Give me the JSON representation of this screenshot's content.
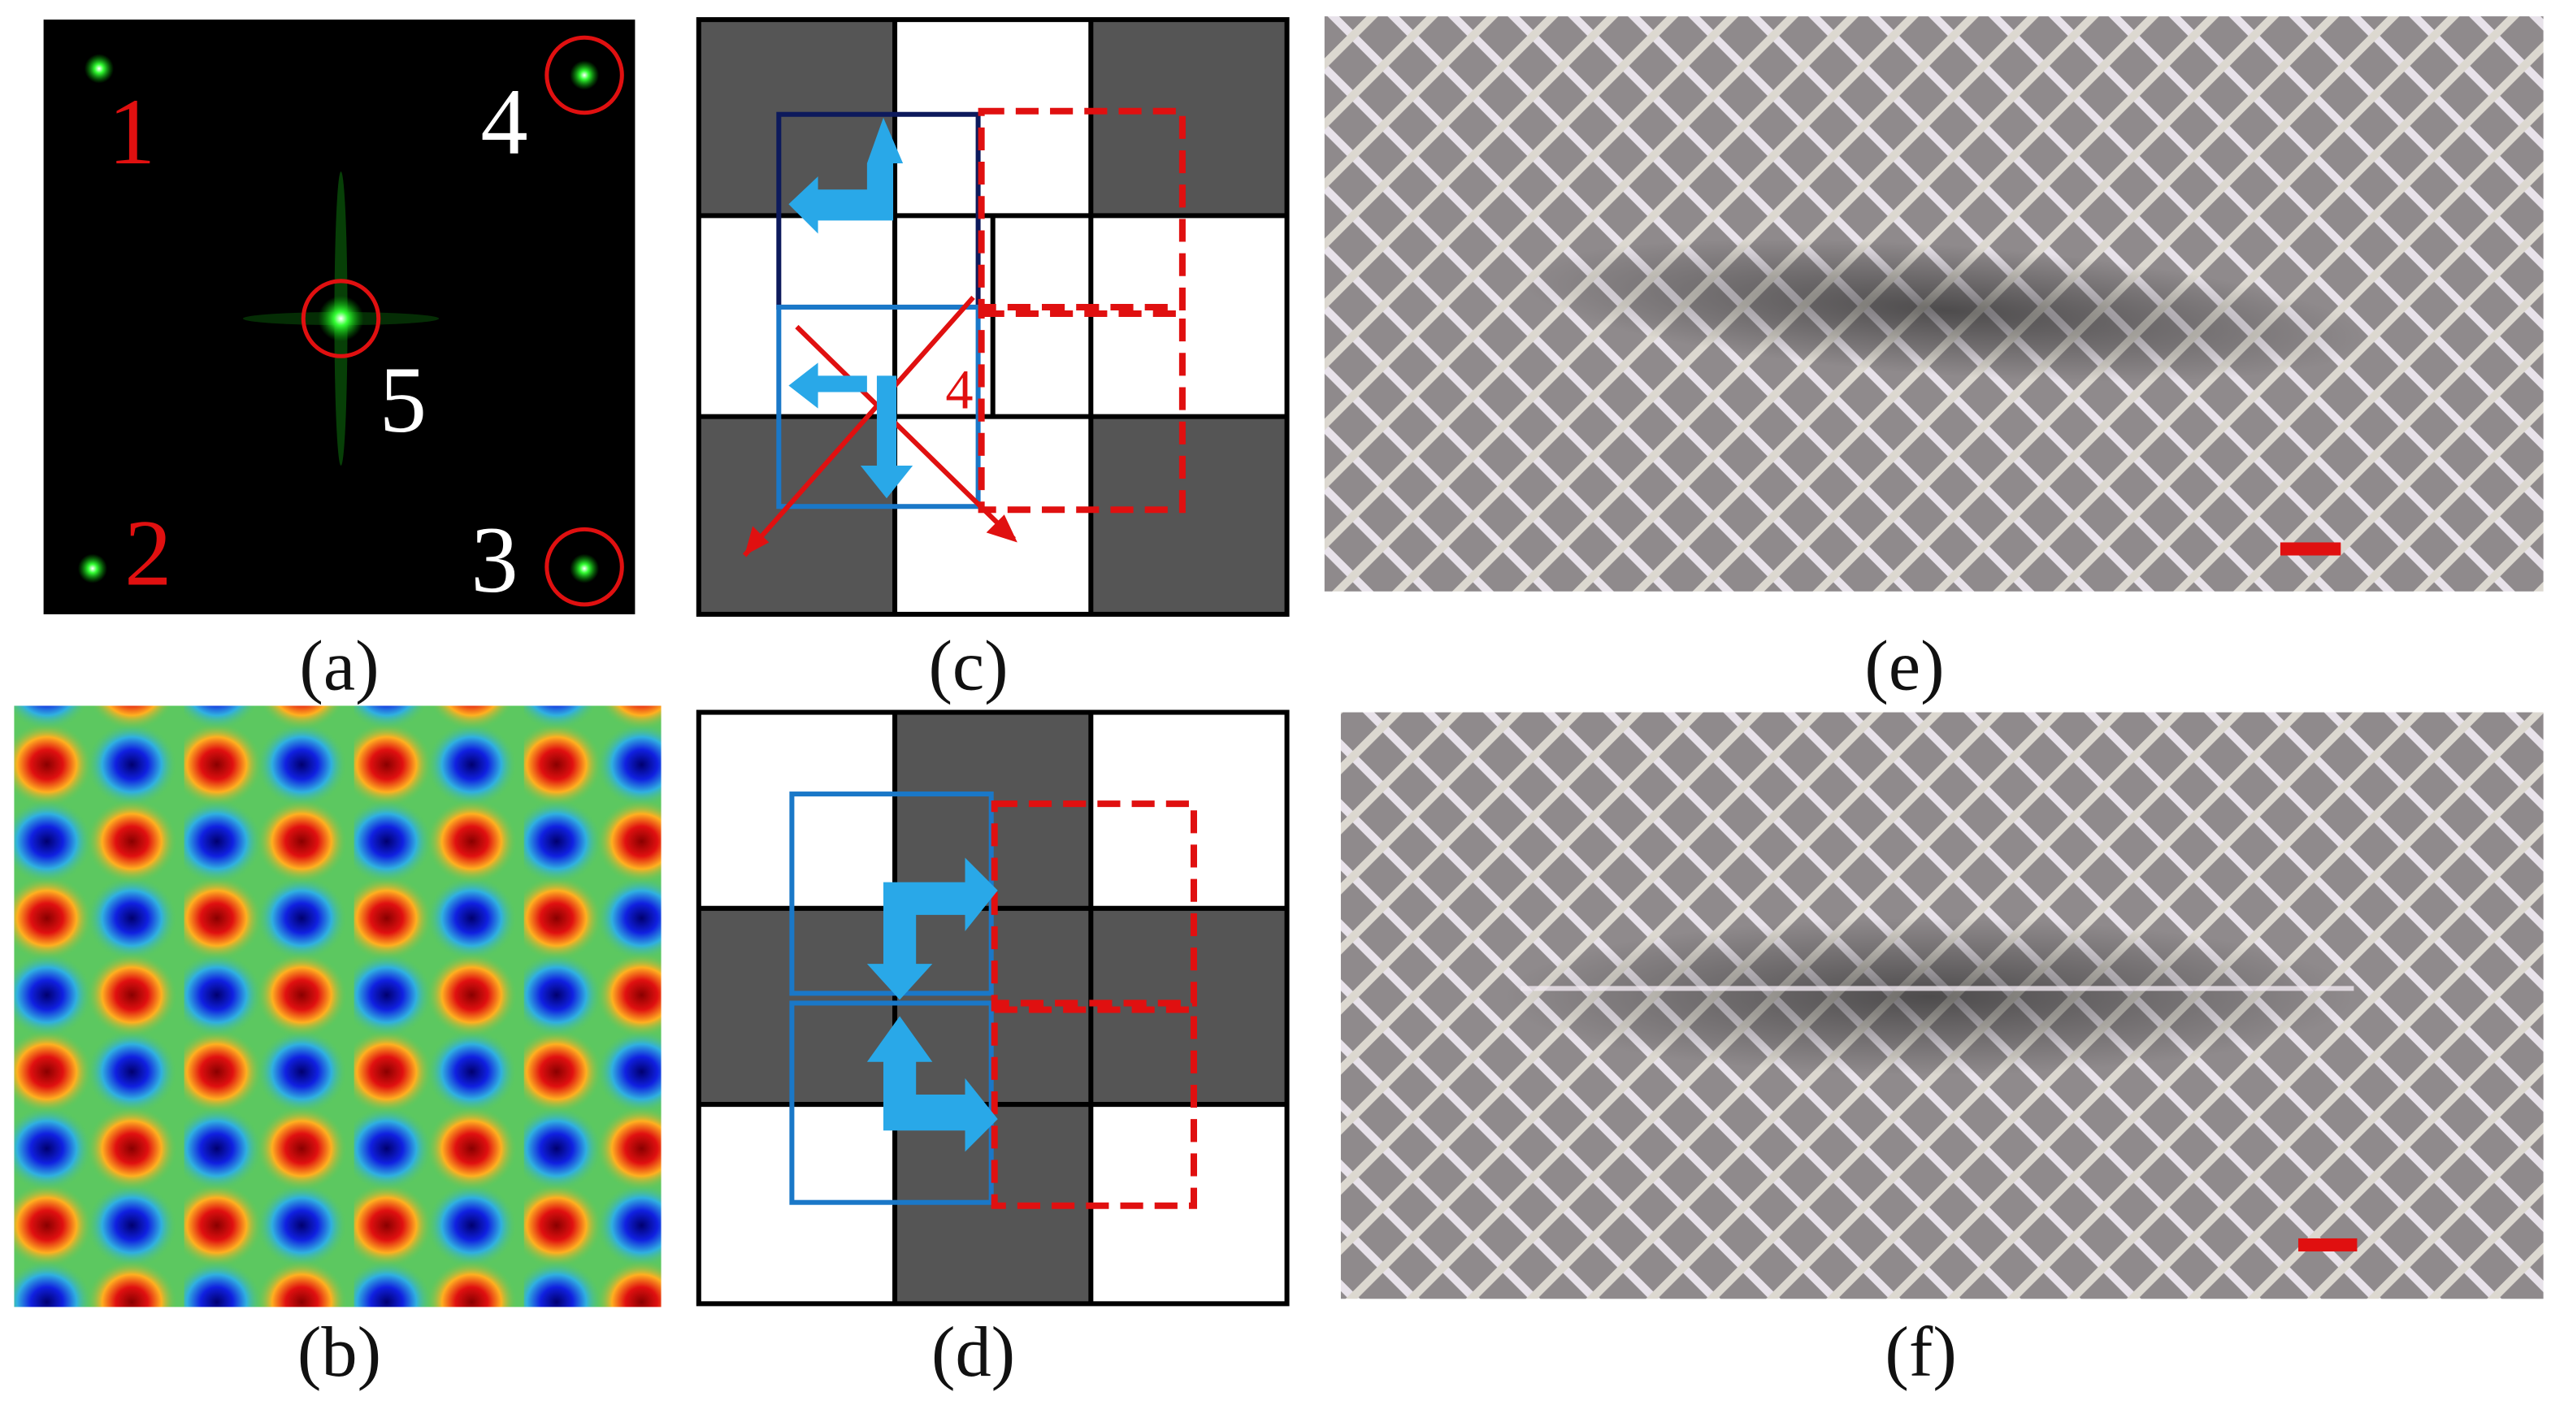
{
  "panel_labels": [
    "(a)",
    "(b)",
    "(c)",
    "(d)",
    "(e)",
    "(f)"
  ],
  "spot_numbers": [
    "1",
    "2",
    "3",
    "4",
    "5"
  ],
  "cross_label": "4"
}
